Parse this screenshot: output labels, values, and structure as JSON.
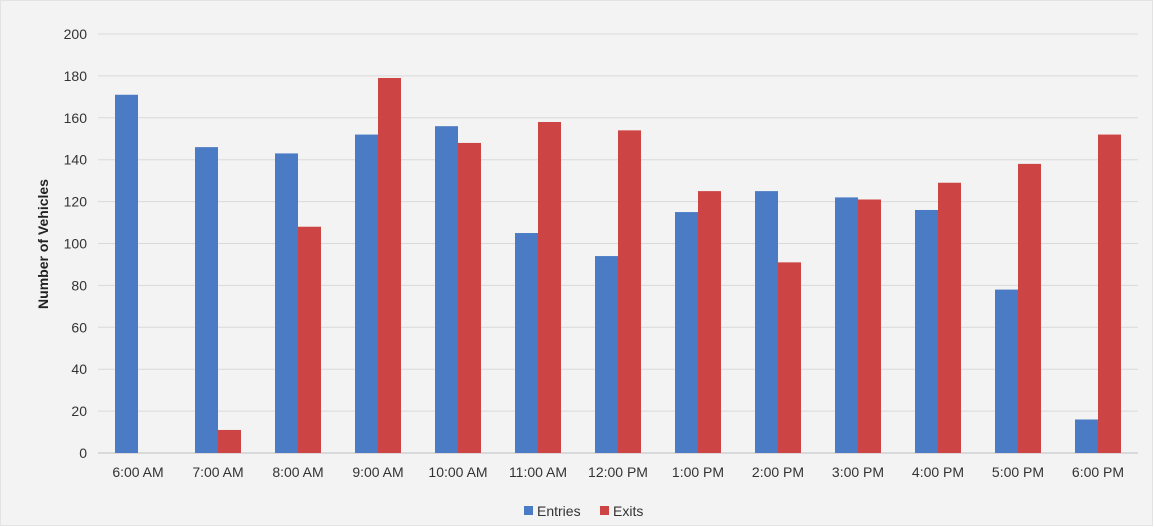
{
  "chart_data": {
    "type": "bar",
    "title": "",
    "xlabel": "",
    "ylabel": "Number of Vehicles",
    "ylim": [
      0,
      200
    ],
    "yticks": [
      0,
      20,
      40,
      60,
      80,
      100,
      120,
      140,
      160,
      180,
      200
    ],
    "grid": true,
    "legend_position": "bottom-center",
    "categories": [
      "6:00 AM",
      "7:00 AM",
      "8:00 AM",
      "9:00 AM",
      "10:00 AM",
      "11:00 AM",
      "12:00 PM",
      "1:00 PM",
      "2:00 PM",
      "3:00 PM",
      "4:00 PM",
      "5:00 PM",
      "6:00 PM"
    ],
    "series": [
      {
        "name": "Entries",
        "color": "#4a7bc4",
        "values": [
          171,
          146,
          143,
          152,
          156,
          105,
          94,
          115,
          125,
          122,
          116,
          78,
          16
        ]
      },
      {
        "name": "Exits",
        "color": "#cc4444",
        "values": [
          0,
          11,
          108,
          179,
          148,
          158,
          154,
          125,
          91,
          121,
          129,
          138,
          152
        ]
      }
    ]
  }
}
